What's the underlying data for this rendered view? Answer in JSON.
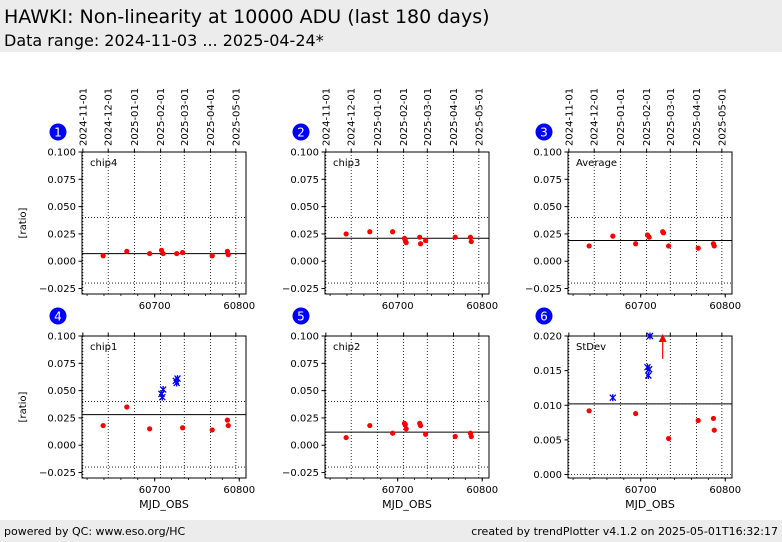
{
  "header": {
    "title": "HAWKI: Non-linearity at 10000 ADU (last 180 days)",
    "subtitle": "Data range: 2024-11-03 ... 2025-04-24*"
  },
  "footer": {
    "left": "powered by QC: www.eso.org/HC",
    "right": "created by trendPlotter v4.1.2 on 2025-05-01T16:32:17"
  },
  "colors": {
    "red": "#ff0000",
    "blue": "#0000ff",
    "badge": "#0000ff"
  },
  "date_ticks": [
    "2024-11-01",
    "2024-12-01",
    "2025-01-01",
    "2025-02-01",
    "2025-03-01",
    "2025-04-01",
    "2025-05-01"
  ],
  "chart_data": [
    {
      "type": "scatter",
      "index": "1",
      "label": "chip4",
      "xlabel": "",
      "ylabel": "[ratio]",
      "xlim": [
        60614,
        60808
      ],
      "ylim": [
        -0.03,
        0.1
      ],
      "xticks": [
        60700,
        60800
      ],
      "yticks": [
        -0.025,
        0.0,
        0.025,
        0.05,
        0.075,
        0.1
      ],
      "ytick_labels": [
        "−0.025",
        "0.000",
        "0.025",
        "0.050",
        "0.075",
        "0.100"
      ],
      "ref_line": 0.007,
      "thresholds": [
        0.04,
        -0.02
      ],
      "points": [
        {
          "x": 60639,
          "y": 0.005,
          "c": "red"
        },
        {
          "x": 60667,
          "y": 0.009,
          "c": "red"
        },
        {
          "x": 60694,
          "y": 0.007,
          "c": "red"
        },
        {
          "x": 60708,
          "y": 0.01,
          "c": "red"
        },
        {
          "x": 60710,
          "y": 0.007,
          "c": "red"
        },
        {
          "x": 60726,
          "y": 0.007,
          "c": "red"
        },
        {
          "x": 60733,
          "y": 0.008,
          "c": "red"
        },
        {
          "x": 60768,
          "y": 0.005,
          "c": "red"
        },
        {
          "x": 60786,
          "y": 0.009,
          "c": "red"
        },
        {
          "x": 60787,
          "y": 0.006,
          "c": "red"
        }
      ]
    },
    {
      "type": "scatter",
      "index": "2",
      "label": "chip3",
      "xlabel": "",
      "ylabel": "",
      "xlim": [
        60614,
        60808
      ],
      "ylim": [
        -0.03,
        0.1
      ],
      "xticks": [
        60700,
        60800
      ],
      "yticks": [
        -0.025,
        0.0,
        0.025,
        0.05,
        0.075,
        0.1
      ],
      "ytick_labels": [
        "−0.025",
        "0.000",
        "0.025",
        "0.050",
        "0.075",
        "0.100"
      ],
      "ref_line": 0.021,
      "thresholds": [
        0.04,
        -0.02
      ],
      "points": [
        {
          "x": 60639,
          "y": 0.025,
          "c": "red"
        },
        {
          "x": 60667,
          "y": 0.027,
          "c": "red"
        },
        {
          "x": 60694,
          "y": 0.027,
          "c": "red"
        },
        {
          "x": 60708,
          "y": 0.021,
          "c": "red"
        },
        {
          "x": 60709,
          "y": 0.019,
          "c": "red"
        },
        {
          "x": 60710,
          "y": 0.017,
          "c": "red"
        },
        {
          "x": 60726,
          "y": 0.022,
          "c": "red"
        },
        {
          "x": 60727,
          "y": 0.016,
          "c": "red"
        },
        {
          "x": 60733,
          "y": 0.019,
          "c": "red"
        },
        {
          "x": 60768,
          "y": 0.022,
          "c": "red"
        },
        {
          "x": 60786,
          "y": 0.022,
          "c": "red"
        },
        {
          "x": 60787,
          "y": 0.018,
          "c": "red"
        }
      ]
    },
    {
      "type": "scatter",
      "index": "3",
      "label": "Average",
      "xlabel": "",
      "ylabel": "",
      "xlim": [
        60614,
        60808
      ],
      "ylim": [
        -0.03,
        0.1
      ],
      "xticks": [
        60700,
        60800
      ],
      "yticks": [
        -0.025,
        0.0,
        0.025,
        0.05,
        0.075,
        0.1
      ],
      "ytick_labels": [
        "−0.025",
        "0.000",
        "0.025",
        "0.050",
        "0.075",
        "0.100"
      ],
      "ref_line": 0.019,
      "thresholds": [
        0.04,
        -0.02
      ],
      "points": [
        {
          "x": 60639,
          "y": 0.014,
          "c": "red"
        },
        {
          "x": 60667,
          "y": 0.023,
          "c": "red"
        },
        {
          "x": 60694,
          "y": 0.016,
          "c": "red"
        },
        {
          "x": 60708,
          "y": 0.024,
          "c": "red"
        },
        {
          "x": 60710,
          "y": 0.022,
          "c": "red"
        },
        {
          "x": 60726,
          "y": 0.027,
          "c": "red"
        },
        {
          "x": 60727,
          "y": 0.026,
          "c": "red"
        },
        {
          "x": 60733,
          "y": 0.014,
          "c": "red"
        },
        {
          "x": 60768,
          "y": 0.012,
          "c": "red"
        },
        {
          "x": 60786,
          "y": 0.016,
          "c": "red"
        },
        {
          "x": 60787,
          "y": 0.014,
          "c": "red"
        }
      ]
    },
    {
      "type": "scatter",
      "index": "4",
      "label": "chip1",
      "xlabel": "MJD_OBS",
      "ylabel": "[ratio]",
      "xlim": [
        60614,
        60808
      ],
      "ylim": [
        -0.03,
        0.1
      ],
      "xticks": [
        60700,
        60800
      ],
      "yticks": [
        -0.025,
        0.0,
        0.025,
        0.05,
        0.075,
        0.1
      ],
      "ytick_labels": [
        "−0.025",
        "0.000",
        "0.025",
        "0.050",
        "0.075",
        "0.100"
      ],
      "ref_line": 0.028,
      "thresholds": [
        0.04,
        -0.02
      ],
      "points": [
        {
          "x": 60639,
          "y": 0.018,
          "c": "red"
        },
        {
          "x": 60667,
          "y": 0.035,
          "c": "red"
        },
        {
          "x": 60694,
          "y": 0.015,
          "c": "red"
        },
        {
          "x": 60708,
          "y": 0.047,
          "c": "blue"
        },
        {
          "x": 60709,
          "y": 0.044,
          "c": "blue"
        },
        {
          "x": 60710,
          "y": 0.051,
          "c": "blue"
        },
        {
          "x": 60725,
          "y": 0.059,
          "c": "blue"
        },
        {
          "x": 60726,
          "y": 0.057,
          "c": "blue"
        },
        {
          "x": 60727,
          "y": 0.061,
          "c": "blue"
        },
        {
          "x": 60733,
          "y": 0.016,
          "c": "red"
        },
        {
          "x": 60768,
          "y": 0.014,
          "c": "red"
        },
        {
          "x": 60786,
          "y": 0.023,
          "c": "red"
        },
        {
          "x": 60787,
          "y": 0.018,
          "c": "red"
        }
      ]
    },
    {
      "type": "scatter",
      "index": "5",
      "label": "chip2",
      "xlabel": "MJD_OBS",
      "ylabel": "",
      "xlim": [
        60614,
        60808
      ],
      "ylim": [
        -0.03,
        0.1
      ],
      "xticks": [
        60700,
        60800
      ],
      "yticks": [
        -0.025,
        0.0,
        0.025,
        0.05,
        0.075,
        0.1
      ],
      "ytick_labels": [
        "−0.025",
        "0.000",
        "0.025",
        "0.050",
        "0.075",
        "0.100"
      ],
      "ref_line": 0.012,
      "thresholds": [
        0.04,
        -0.02
      ],
      "points": [
        {
          "x": 60639,
          "y": 0.007,
          "c": "red"
        },
        {
          "x": 60667,
          "y": 0.018,
          "c": "red"
        },
        {
          "x": 60694,
          "y": 0.011,
          "c": "red"
        },
        {
          "x": 60708,
          "y": 0.02,
          "c": "red"
        },
        {
          "x": 60709,
          "y": 0.019,
          "c": "red"
        },
        {
          "x": 60710,
          "y": 0.015,
          "c": "red"
        },
        {
          "x": 60726,
          "y": 0.02,
          "c": "red"
        },
        {
          "x": 60727,
          "y": 0.018,
          "c": "red"
        },
        {
          "x": 60733,
          "y": 0.01,
          "c": "red"
        },
        {
          "x": 60768,
          "y": 0.008,
          "c": "red"
        },
        {
          "x": 60786,
          "y": 0.011,
          "c": "red"
        },
        {
          "x": 60787,
          "y": 0.008,
          "c": "red"
        }
      ]
    },
    {
      "type": "scatter",
      "index": "6",
      "label": "StDev",
      "xlabel": "MJD_OBS",
      "ylabel": "",
      "xlim": [
        60614,
        60808
      ],
      "ylim": [
        -0.0005,
        0.02
      ],
      "xticks": [
        60700,
        60800
      ],
      "yticks": [
        0.0,
        0.005,
        0.01,
        0.015,
        0.02
      ],
      "ytick_labels": [
        "0.000",
        "0.005",
        "0.010",
        "0.015",
        "0.020"
      ],
      "ref_line": 0.0102,
      "thresholds": [
        0.0102,
        0.0
      ],
      "points": [
        {
          "x": 60639,
          "y": 0.0092,
          "c": "red"
        },
        {
          "x": 60667,
          "y": 0.0111,
          "c": "blue"
        },
        {
          "x": 60694,
          "y": 0.0088,
          "c": "red"
        },
        {
          "x": 60708,
          "y": 0.0155,
          "c": "blue"
        },
        {
          "x": 60709,
          "y": 0.0143,
          "c": "blue"
        },
        {
          "x": 60710,
          "y": 0.0152,
          "c": "blue"
        },
        {
          "x": 60711,
          "y": 0.02,
          "c": "blue"
        },
        {
          "x": 60733,
          "y": 0.0052,
          "c": "red"
        },
        {
          "x": 60768,
          "y": 0.0078,
          "c": "red"
        },
        {
          "x": 60786,
          "y": 0.0081,
          "c": "red"
        },
        {
          "x": 60787,
          "y": 0.0064,
          "c": "red"
        }
      ],
      "arrows": [
        {
          "x": 60726,
          "y_from": 0.0167,
          "y_to": 0.02
        }
      ]
    }
  ]
}
